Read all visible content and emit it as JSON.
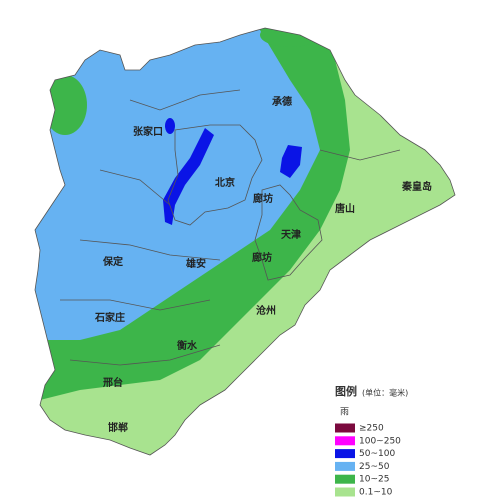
{
  "cities": [
    "张家口",
    "承德",
    "北京",
    "廊坊",
    "天津",
    "唐山",
    "秦皇岛",
    "保定",
    "雄安",
    "廊坊",
    "石家庄",
    "沧州",
    "衡水",
    "邢台",
    "邯郸"
  ],
  "legend": {
    "title": "图例",
    "unit": "(单位：毫米)",
    "subtitle": "雨",
    "items": [
      {
        "label": "≥250",
        "color": "#7b0a3e"
      },
      {
        "label": "100~250",
        "color": "#ff00ff"
      },
      {
        "label": "50~100",
        "color": "#0a14e6"
      },
      {
        "label": "25~50",
        "color": "#66b2f2"
      },
      {
        "label": "10~25",
        "color": "#3db54a"
      },
      {
        "label": "0.1~10",
        "color": "#a8e38f"
      }
    ]
  }
}
